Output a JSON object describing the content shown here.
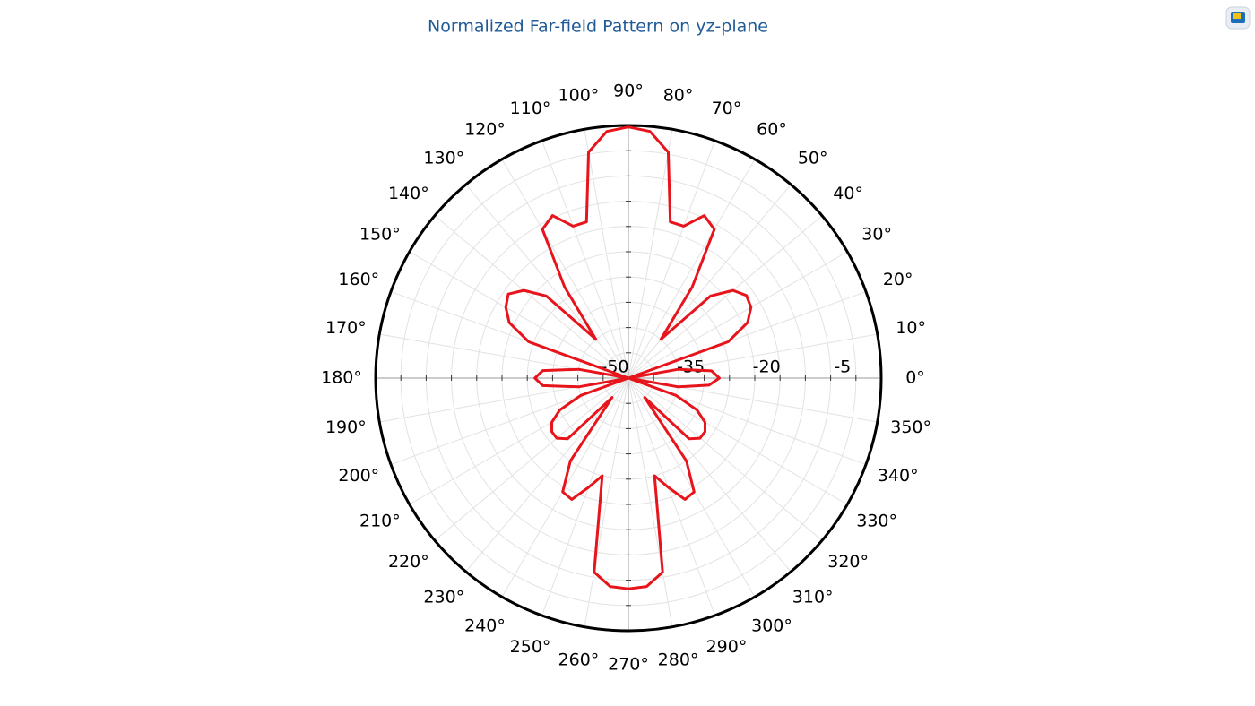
{
  "chart_data": {
    "type": "polar",
    "title": "Normalized Far-field Pattern on yz-plane",
    "color": "#e8141b",
    "theta": [
      0,
      5,
      10,
      15,
      20,
      25,
      30,
      35,
      40,
      45,
      50,
      55,
      60,
      65,
      70,
      75,
      80,
      85,
      90,
      95,
      100,
      105,
      110,
      115,
      120,
      125,
      130,
      135,
      140,
      145,
      150,
      155,
      160,
      165,
      170,
      175,
      180,
      185,
      190,
      195,
      200,
      205,
      210,
      215,
      220,
      225,
      230,
      235,
      240,
      245,
      250,
      255,
      260,
      265,
      270,
      275,
      280,
      285,
      290,
      295,
      300,
      305,
      310,
      315,
      320,
      325,
      330,
      335,
      340,
      345,
      350,
      355
    ],
    "values": [
      -32,
      -33.5,
      -40,
      -50,
      -29,
      -24,
      -22,
      -21.5,
      -23,
      -27,
      -40,
      -28,
      -16,
      -14.5,
      -18,
      -18,
      -4.6,
      -1,
      -0.3,
      -1,
      -4.6,
      -18,
      -18,
      -14.5,
      -16,
      -28,
      -40,
      -27,
      -23,
      -21,
      -22,
      -24,
      -29,
      -50,
      -40,
      -33,
      -31.5,
      -33,
      -40,
      -50,
      -40,
      -35,
      -32.5,
      -31.5,
      -31.5,
      -33,
      -45,
      -30,
      -24,
      -23.5,
      -27,
      -30,
      -11,
      -8.6,
      -8.3,
      -8.6,
      -11,
      -30,
      -27,
      -23.5,
      -24,
      -30,
      -45,
      -33,
      -31.5,
      -31.5,
      -32.5,
      -35,
      -40,
      -50,
      -40,
      -34
    ],
    "rlim": [
      -50,
      0
    ],
    "rticks": [
      -50,
      -35,
      -20,
      -5
    ],
    "rgrid": [
      -45,
      -40,
      -35,
      -30,
      -25,
      -20,
      -15,
      -10,
      -5
    ],
    "thetaticks": [
      {
        "value": 0,
        "label": "0°"
      },
      {
        "value": 10,
        "label": "10°"
      },
      {
        "value": 20,
        "label": "20°"
      },
      {
        "value": 30,
        "label": "30°"
      },
      {
        "value": 40,
        "label": "40°"
      },
      {
        "value": 50,
        "label": "50°"
      },
      {
        "value": 60,
        "label": "60°"
      },
      {
        "value": 70,
        "label": "70°"
      },
      {
        "value": 80,
        "label": "80°"
      },
      {
        "value": 90,
        "label": "90°"
      },
      {
        "value": 100,
        "label": "100°"
      },
      {
        "value": 110,
        "label": "110°"
      },
      {
        "value": 120,
        "label": "120°"
      },
      {
        "value": 130,
        "label": "130°"
      },
      {
        "value": 140,
        "label": "140°"
      },
      {
        "value": 150,
        "label": "150°"
      },
      {
        "value": 160,
        "label": "160°"
      },
      {
        "value": 170,
        "label": "170°"
      },
      {
        "value": 180,
        "label": "180°"
      },
      {
        "value": 190,
        "label": "190°"
      },
      {
        "value": 200,
        "label": "200°"
      },
      {
        "value": 210,
        "label": "210°"
      },
      {
        "value": 220,
        "label": "220°"
      },
      {
        "value": 230,
        "label": "230°"
      },
      {
        "value": 240,
        "label": "240°"
      },
      {
        "value": 250,
        "label": "250°"
      },
      {
        "value": 260,
        "label": "260°"
      },
      {
        "value": 270,
        "label": "270°"
      },
      {
        "value": 280,
        "label": "280°"
      },
      {
        "value": 290,
        "label": "290°"
      },
      {
        "value": 300,
        "label": "300°"
      },
      {
        "value": 310,
        "label": "310°"
      },
      {
        "value": 320,
        "label": "320°"
      },
      {
        "value": 330,
        "label": "330°"
      },
      {
        "value": 340,
        "label": "340°"
      },
      {
        "value": 350,
        "label": "350°"
      }
    ]
  }
}
